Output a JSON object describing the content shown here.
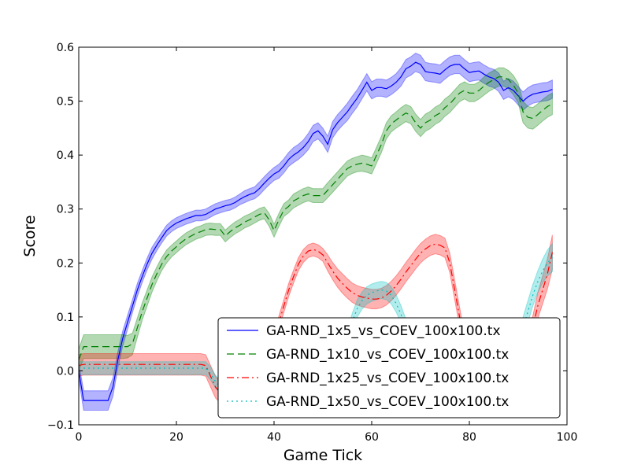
{
  "chart_data": {
    "type": "line",
    "xlabel": "Game Tick",
    "ylabel": "Score",
    "xlim": [
      0,
      100
    ],
    "ylim": [
      -0.1,
      0.6
    ],
    "xticks": [
      "0",
      "20",
      "40",
      "60",
      "80",
      "100"
    ],
    "xtick_values": [
      0,
      20,
      40,
      60,
      80,
      100
    ],
    "yticks": [
      "−0.1",
      "0.0",
      "0.1",
      "0.2",
      "0.3",
      "0.4",
      "0.5",
      "0.6"
    ],
    "ytick_values": [
      -0.1,
      0.0,
      0.1,
      0.2,
      0.3,
      0.4,
      0.5,
      0.6
    ],
    "grid": false,
    "legend_position": "lower-right",
    "x": [
      0,
      1,
      2,
      3,
      4,
      5,
      6,
      7,
      8,
      9,
      10,
      11,
      12,
      13,
      14,
      15,
      16,
      17,
      18,
      19,
      20,
      21,
      22,
      23,
      24,
      25,
      26,
      27,
      28,
      29,
      30,
      31,
      32,
      33,
      34,
      35,
      36,
      37,
      38,
      39,
      40,
      41,
      42,
      43,
      44,
      45,
      46,
      47,
      48,
      49,
      50,
      51,
      52,
      53,
      54,
      55,
      56,
      57,
      58,
      59,
      60,
      61,
      62,
      63,
      64,
      65,
      66,
      67,
      68,
      69,
      70,
      71,
      72,
      73,
      74,
      75,
      76,
      77,
      78,
      79,
      80,
      81,
      82,
      83,
      84,
      85,
      86,
      87,
      88,
      89,
      90,
      91,
      92,
      93,
      94,
      95,
      96,
      97
    ],
    "series": [
      {
        "name": "GA-RND_1x5_vs_COEV_100x100.tx",
        "color": "#0000ff",
        "band_color": "#0000ff",
        "dash": "none",
        "values": [
          0.0,
          -0.055,
          -0.055,
          -0.055,
          -0.055,
          -0.055,
          -0.055,
          -0.03,
          0.02,
          0.06,
          0.09,
          0.12,
          0.15,
          0.175,
          0.198,
          0.218,
          0.233,
          0.247,
          0.26,
          0.268,
          0.274,
          0.278,
          0.282,
          0.285,
          0.288,
          0.288,
          0.29,
          0.295,
          0.3,
          0.303,
          0.306,
          0.308,
          0.312,
          0.318,
          0.323,
          0.327,
          0.33,
          0.338,
          0.348,
          0.357,
          0.365,
          0.37,
          0.38,
          0.392,
          0.4,
          0.406,
          0.414,
          0.425,
          0.44,
          0.445,
          0.435,
          0.42,
          0.447,
          0.46,
          0.47,
          0.48,
          0.493,
          0.505,
          0.52,
          0.535,
          0.52,
          0.525,
          0.525,
          0.523,
          0.528,
          0.535,
          0.545,
          0.56,
          0.565,
          0.572,
          0.568,
          0.555,
          0.553,
          0.552,
          0.55,
          0.558,
          0.565,
          0.568,
          0.568,
          0.56,
          0.553,
          0.555,
          0.556,
          0.55,
          0.545,
          0.542,
          0.535,
          0.52,
          0.525,
          0.52,
          0.51,
          0.5,
          0.508,
          0.513,
          0.515,
          0.517,
          0.518,
          0.522
        ],
        "band": [
          0.015,
          0.018,
          0.018,
          0.018,
          0.018,
          0.018,
          0.018,
          0.017,
          0.015,
          0.014,
          0.013,
          0.012,
          0.012,
          0.011,
          0.011,
          0.011,
          0.01,
          0.01,
          0.01,
          0.01,
          0.01,
          0.01,
          0.01,
          0.01,
          0.01,
          0.01,
          0.01,
          0.01,
          0.01,
          0.01,
          0.01,
          0.01,
          0.01,
          0.01,
          0.011,
          0.011,
          0.011,
          0.012,
          0.012,
          0.012,
          0.012,
          0.013,
          0.013,
          0.013,
          0.014,
          0.014,
          0.014,
          0.015,
          0.015,
          0.015,
          0.015,
          0.015,
          0.015,
          0.015,
          0.015,
          0.016,
          0.016,
          0.016,
          0.016,
          0.016,
          0.016,
          0.016,
          0.016,
          0.016,
          0.016,
          0.016,
          0.017,
          0.017,
          0.017,
          0.017,
          0.017,
          0.017,
          0.017,
          0.017,
          0.017,
          0.017,
          0.017,
          0.017,
          0.017,
          0.017,
          0.017,
          0.017,
          0.017,
          0.017,
          0.017,
          0.017,
          0.017,
          0.017,
          0.017,
          0.017,
          0.017,
          0.017,
          0.017,
          0.017,
          0.017,
          0.017,
          0.017,
          0.017
        ]
      },
      {
        "name": "GA-RND_1x10_vs_COEV_100x100.tx",
        "color": "#008000",
        "band_color": "#008000",
        "dash": "9,5",
        "values": [
          0.02,
          0.045,
          0.045,
          0.045,
          0.045,
          0.045,
          0.045,
          0.045,
          0.045,
          0.045,
          0.045,
          0.05,
          0.08,
          0.11,
          0.135,
          0.16,
          0.18,
          0.198,
          0.212,
          0.222,
          0.23,
          0.238,
          0.245,
          0.25,
          0.255,
          0.258,
          0.262,
          0.263,
          0.262,
          0.262,
          0.25,
          0.258,
          0.265,
          0.27,
          0.276,
          0.28,
          0.285,
          0.29,
          0.293,
          0.28,
          0.26,
          0.28,
          0.298,
          0.305,
          0.315,
          0.32,
          0.325,
          0.328,
          0.325,
          0.325,
          0.325,
          0.335,
          0.345,
          0.355,
          0.365,
          0.375,
          0.38,
          0.383,
          0.385,
          0.383,
          0.38,
          0.4,
          0.42,
          0.445,
          0.458,
          0.465,
          0.472,
          0.478,
          0.474,
          0.46,
          0.45,
          0.46,
          0.465,
          0.473,
          0.478,
          0.488,
          0.495,
          0.505,
          0.515,
          0.52,
          0.515,
          0.515,
          0.52,
          0.528,
          0.535,
          0.54,
          0.545,
          0.545,
          0.54,
          0.53,
          0.515,
          0.48,
          0.47,
          0.468,
          0.475,
          0.483,
          0.49,
          0.495
        ],
        "band": [
          0.02,
          0.022,
          0.022,
          0.022,
          0.022,
          0.022,
          0.022,
          0.022,
          0.022,
          0.022,
          0.021,
          0.02,
          0.018,
          0.016,
          0.015,
          0.014,
          0.013,
          0.012,
          0.012,
          0.011,
          0.011,
          0.011,
          0.011,
          0.011,
          0.011,
          0.011,
          0.011,
          0.011,
          0.011,
          0.011,
          0.011,
          0.011,
          0.011,
          0.011,
          0.011,
          0.011,
          0.011,
          0.011,
          0.011,
          0.012,
          0.012,
          0.012,
          0.012,
          0.012,
          0.013,
          0.013,
          0.013,
          0.013,
          0.013,
          0.013,
          0.013,
          0.014,
          0.014,
          0.014,
          0.014,
          0.014,
          0.014,
          0.014,
          0.015,
          0.015,
          0.015,
          0.015,
          0.015,
          0.015,
          0.015,
          0.015,
          0.016,
          0.016,
          0.016,
          0.016,
          0.016,
          0.016,
          0.016,
          0.016,
          0.016,
          0.016,
          0.016,
          0.016,
          0.016,
          0.016,
          0.016,
          0.016,
          0.016,
          0.017,
          0.017,
          0.017,
          0.017,
          0.017,
          0.017,
          0.018,
          0.018,
          0.02,
          0.02,
          0.02,
          0.02,
          0.02,
          0.02,
          0.02
        ]
      },
      {
        "name": "GA-RND_1x25_vs_COEV_100x100.tx",
        "color": "#ff0000",
        "band_color": "#ff0000",
        "dash": "9,4,2,4",
        "values": [
          0.01,
          0.012,
          0.012,
          0.012,
          0.012,
          0.012,
          0.012,
          0.012,
          0.012,
          0.012,
          0.012,
          0.012,
          0.012,
          0.012,
          0.012,
          0.012,
          0.012,
          0.012,
          0.012,
          0.012,
          0.012,
          0.012,
          0.012,
          0.012,
          0.012,
          0.012,
          0.01,
          -0.01,
          -0.03,
          -0.04,
          -0.04,
          -0.04,
          -0.04,
          -0.04,
          -0.04,
          -0.04,
          -0.04,
          -0.04,
          0.0,
          0.03,
          0.06,
          0.09,
          0.12,
          0.15,
          0.175,
          0.198,
          0.213,
          0.222,
          0.225,
          0.222,
          0.215,
          0.2,
          0.185,
          0.172,
          0.162,
          0.153,
          0.145,
          0.14,
          0.137,
          0.135,
          0.133,
          0.133,
          0.135,
          0.14,
          0.148,
          0.158,
          0.17,
          0.183,
          0.195,
          0.207,
          0.218,
          0.226,
          0.232,
          0.235,
          0.233,
          0.228,
          0.2,
          0.15,
          0.1,
          0.05,
          0.0,
          -0.03,
          -0.05,
          -0.05,
          -0.05,
          -0.05,
          -0.05,
          -0.05,
          -0.05,
          -0.05,
          -0.05,
          0.0,
          0.04,
          0.08,
          0.12,
          0.15,
          0.18,
          0.22
        ],
        "band": [
          0.02,
          0.02,
          0.02,
          0.02,
          0.02,
          0.02,
          0.02,
          0.02,
          0.02,
          0.02,
          0.02,
          0.02,
          0.02,
          0.02,
          0.02,
          0.02,
          0.02,
          0.02,
          0.02,
          0.02,
          0.02,
          0.02,
          0.02,
          0.02,
          0.02,
          0.02,
          0.02,
          0.02,
          0.02,
          0.02,
          0.02,
          0.02,
          0.02,
          0.02,
          0.02,
          0.02,
          0.02,
          0.02,
          0.015,
          0.012,
          0.012,
          0.012,
          0.012,
          0.012,
          0.012,
          0.012,
          0.012,
          0.012,
          0.012,
          0.012,
          0.012,
          0.015,
          0.016,
          0.017,
          0.018,
          0.018,
          0.018,
          0.018,
          0.018,
          0.018,
          0.018,
          0.018,
          0.018,
          0.018,
          0.018,
          0.018,
          0.018,
          0.018,
          0.018,
          0.018,
          0.018,
          0.018,
          0.018,
          0.018,
          0.018,
          0.018,
          0.018,
          0.018,
          0.018,
          0.018,
          0.018,
          0.018,
          0.018,
          0.018,
          0.018,
          0.018,
          0.018,
          0.018,
          0.018,
          0.018,
          0.018,
          0.018,
          0.02,
          0.022,
          0.024,
          0.026,
          0.028,
          0.032
        ]
      },
      {
        "name": "GA-RND_1x50_vs_COEV_100x100.tx",
        "color": "#00bfbf",
        "band_color": "#00bfbf",
        "dash": "2,4",
        "values": [
          0.005,
          0.005,
          0.005,
          0.005,
          0.005,
          0.005,
          0.005,
          0.005,
          0.005,
          0.005,
          0.005,
          0.005,
          0.005,
          0.005,
          0.005,
          0.005,
          0.005,
          0.005,
          0.005,
          0.005,
          0.005,
          0.005,
          0.005,
          0.005,
          0.005,
          0.005,
          0.005,
          -0.005,
          -0.02,
          -0.03,
          -0.035,
          -0.035,
          -0.035,
          -0.035,
          -0.035,
          -0.035,
          -0.035,
          -0.035,
          -0.035,
          -0.035,
          -0.035,
          -0.035,
          -0.035,
          -0.035,
          -0.035,
          -0.035,
          -0.035,
          -0.035,
          -0.035,
          -0.035,
          -0.035,
          -0.035,
          -0.02,
          0.0,
          0.03,
          0.06,
          0.09,
          0.115,
          0.13,
          0.14,
          0.145,
          0.148,
          0.15,
          0.148,
          0.14,
          0.125,
          0.105,
          0.08,
          0.05,
          0.02,
          0.0,
          -0.02,
          -0.03,
          -0.035,
          -0.035,
          -0.035,
          -0.035,
          -0.035,
          -0.035,
          -0.035,
          -0.035,
          -0.035,
          -0.035,
          -0.035,
          -0.035,
          -0.035,
          -0.035,
          -0.035,
          -0.035,
          -0.02,
          0.03,
          0.08,
          0.11,
          0.14,
          0.165,
          0.185,
          0.2,
          0.21
        ],
        "band": [
          0.012,
          0.012,
          0.012,
          0.012,
          0.012,
          0.012,
          0.012,
          0.012,
          0.012,
          0.012,
          0.012,
          0.012,
          0.012,
          0.012,
          0.012,
          0.012,
          0.012,
          0.012,
          0.012,
          0.012,
          0.012,
          0.012,
          0.012,
          0.012,
          0.012,
          0.012,
          0.012,
          0.012,
          0.012,
          0.012,
          0.012,
          0.012,
          0.012,
          0.012,
          0.012,
          0.012,
          0.012,
          0.012,
          0.012,
          0.012,
          0.012,
          0.012,
          0.012,
          0.012,
          0.012,
          0.012,
          0.012,
          0.012,
          0.012,
          0.012,
          0.012,
          0.012,
          0.015,
          0.016,
          0.016,
          0.016,
          0.016,
          0.016,
          0.016,
          0.016,
          0.016,
          0.016,
          0.016,
          0.016,
          0.016,
          0.016,
          0.016,
          0.016,
          0.016,
          0.016,
          0.016,
          0.016,
          0.016,
          0.016,
          0.016,
          0.016,
          0.016,
          0.016,
          0.016,
          0.016,
          0.016,
          0.016,
          0.016,
          0.016,
          0.016,
          0.016,
          0.016,
          0.016,
          0.016,
          0.016,
          0.018,
          0.02,
          0.02,
          0.02,
          0.02,
          0.022,
          0.024,
          0.026
        ]
      }
    ]
  }
}
